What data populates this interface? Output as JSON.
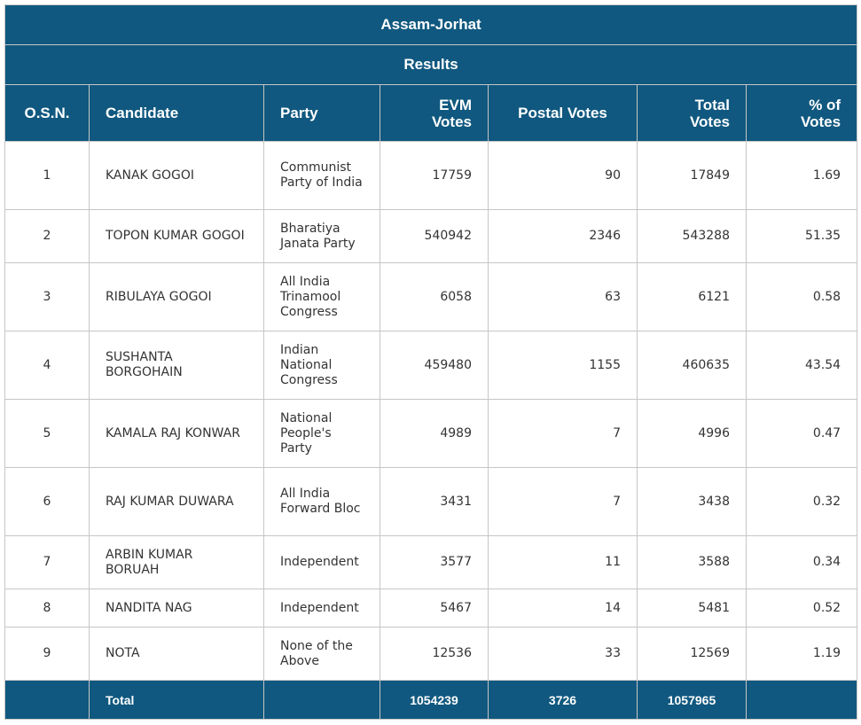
{
  "title": "Assam-Jorhat",
  "subtitle": "Results",
  "headers": {
    "osn": "O.S.N.",
    "candidate": "Candidate",
    "party": "Party",
    "evm_line1": "EVM",
    "evm_line2": "Votes",
    "postal": "Postal Votes",
    "total_line1": "Total",
    "total_line2": "Votes",
    "pct_line1": "% of",
    "pct_line2": "Votes"
  },
  "rows": [
    {
      "osn": "1",
      "candidate": "KANAK GOGOI",
      "party": "Communist Party of India",
      "evm": "17759",
      "postal": "90",
      "total": "17849",
      "pct": "1.69"
    },
    {
      "osn": "2",
      "candidate": "TOPON KUMAR GOGOI",
      "party": "Bharatiya Janata Party",
      "evm": "540942",
      "postal": "2346",
      "total": "543288",
      "pct": "51.35"
    },
    {
      "osn": "3",
      "candidate": "RIBULAYA GOGOI",
      "party": "All India Trinamool Congress",
      "evm": "6058",
      "postal": "63",
      "total": "6121",
      "pct": "0.58"
    },
    {
      "osn": "4",
      "candidate": "SUSHANTA BORGOHAIN",
      "party": "Indian National Congress",
      "evm": "459480",
      "postal": "1155",
      "total": "460635",
      "pct": "43.54"
    },
    {
      "osn": "5",
      "candidate": "KAMALA RAJ KONWAR",
      "party": "National People's Party",
      "evm": "4989",
      "postal": "7",
      "total": "4996",
      "pct": "0.47"
    },
    {
      "osn": "6",
      "candidate": "RAJ KUMAR DUWARA",
      "party": "All India Forward Bloc",
      "evm": "3431",
      "postal": "7",
      "total": "3438",
      "pct": "0.32"
    },
    {
      "osn": "7",
      "candidate": "ARBIN KUMAR BORUAH",
      "party": "Independent",
      "evm": "3577",
      "postal": "11",
      "total": "3588",
      "pct": "0.34"
    },
    {
      "osn": "8",
      "candidate": "NANDITA NAG",
      "party": "Independent",
      "evm": "5467",
      "postal": "14",
      "total": "5481",
      "pct": "0.52"
    },
    {
      "osn": "9",
      "candidate": "NOTA",
      "party": "None of the Above",
      "evm": "12536",
      "postal": "33",
      "total": "12569",
      "pct": "1.19"
    }
  ],
  "totals": {
    "label": "Total",
    "evm": "1054239",
    "postal": "3726",
    "total": "1057965"
  }
}
